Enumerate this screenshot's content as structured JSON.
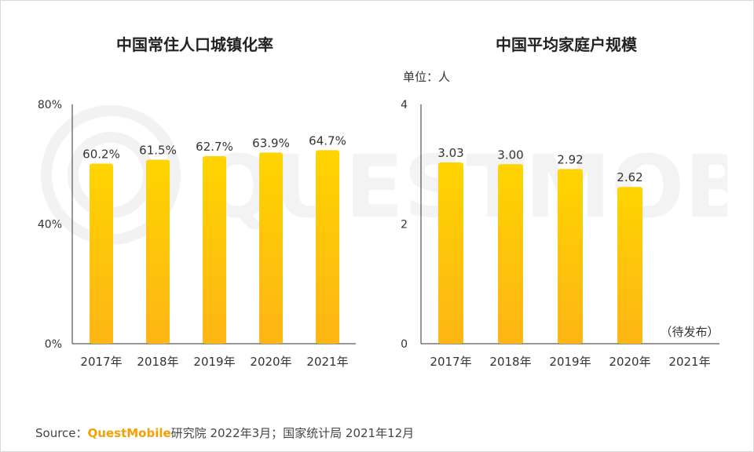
{
  "watermark_text": "QUESTMOBILE",
  "colors": {
    "bar_top": "#FFD400",
    "bar_bottom": "#FDB515",
    "axis": "#333333",
    "text": "#333333",
    "brand": "#F5A000"
  },
  "unit_label": "单位：人",
  "source": {
    "prefix": "Source：",
    "brand": "QuestMobile",
    "rest": "研究院 2022年3月；国家统计局 2021年12月"
  },
  "chart_data": [
    {
      "type": "bar",
      "title": "中国常住人口城镇化率",
      "categories": [
        "2017年",
        "2018年",
        "2019年",
        "2020年",
        "2021年"
      ],
      "values": [
        60.2,
        61.5,
        62.7,
        63.9,
        64.7
      ],
      "value_labels": [
        "60.2%",
        "61.5%",
        "62.7%",
        "63.9%",
        "64.7%"
      ],
      "ylim": [
        0,
        80
      ],
      "yticks": [
        0,
        40,
        80
      ],
      "ytick_labels": [
        "0%",
        "40%",
        "80%"
      ],
      "xlabel": "",
      "ylabel": ""
    },
    {
      "type": "bar",
      "title": "中国平均家庭户规模",
      "categories": [
        "2017年",
        "2018年",
        "2019年",
        "2020年",
        "2021年"
      ],
      "values": [
        3.03,
        3.0,
        2.92,
        2.62,
        null
      ],
      "value_labels": [
        "3.03",
        "3.00",
        "2.92",
        "2.62",
        "（待发布）"
      ],
      "ylim": [
        0,
        4
      ],
      "yticks": [
        0,
        2,
        4
      ],
      "ytick_labels": [
        "0",
        "2",
        "4"
      ],
      "xlabel": "",
      "ylabel": ""
    }
  ]
}
